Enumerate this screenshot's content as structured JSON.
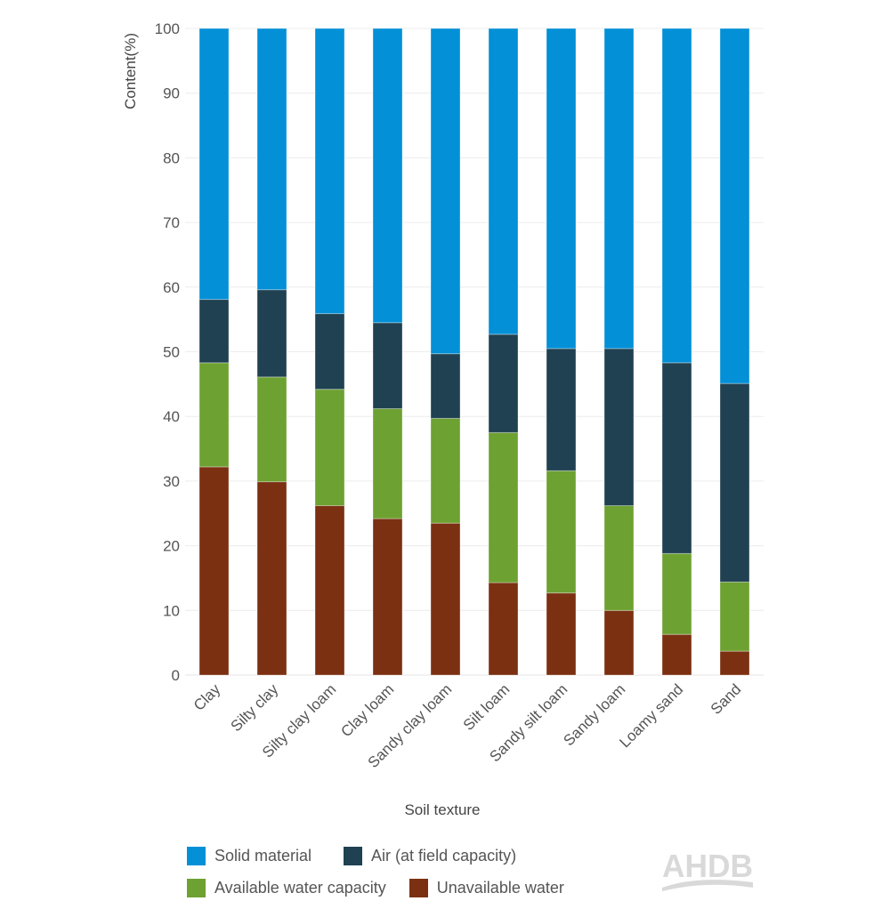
{
  "chart_data": {
    "type": "bar",
    "stacked": true,
    "title": "",
    "xlabel": "Soil texture",
    "ylabel": "Content(%)",
    "ylim": [
      0,
      100
    ],
    "yticks": [
      0,
      10,
      20,
      30,
      40,
      50,
      60,
      70,
      80,
      90,
      100
    ],
    "grid": true,
    "legend_position": "bottom",
    "categories": [
      "Clay",
      "Silty clay",
      "Silty clay loam",
      "Clay loam",
      "Sandy clay loam",
      "Silt loam",
      "Sandy silt loam",
      "Sandy loam",
      "Loamy sand",
      "Sand"
    ],
    "series": [
      {
        "name": "Unavailable water",
        "color": "#7b3011",
        "values": [
          32.2,
          29.9,
          26.2,
          24.2,
          23.5,
          14.3,
          12.7,
          10.0,
          6.3,
          3.7
        ]
      },
      {
        "name": "Available water capacity",
        "color": "#6da131",
        "values": [
          16.1,
          16.2,
          18.0,
          17.0,
          16.2,
          23.2,
          18.9,
          16.2,
          12.5,
          10.7
        ]
      },
      {
        "name": "Air (at field capacity)",
        "color": "#1f4151",
        "values": [
          9.8,
          13.5,
          11.7,
          13.3,
          10.0,
          15.2,
          18.9,
          24.3,
          29.5,
          30.7
        ]
      },
      {
        "name": "Solid material",
        "color": "#0390d7",
        "values": [
          41.9,
          40.4,
          44.1,
          45.5,
          50.3,
          47.3,
          49.5,
          49.5,
          51.7,
          54.9
        ]
      }
    ]
  },
  "legend": {
    "rows": [
      [
        {
          "label": "Solid material",
          "color": "#0390d7"
        },
        {
          "label": "Air (at field capacity)",
          "color": "#1f4151"
        }
      ],
      [
        {
          "label": "Available water capacity",
          "color": "#6da131"
        },
        {
          "label": "Unavailable water",
          "color": "#7b3011"
        }
      ]
    ]
  },
  "logo": {
    "text": "AHDB",
    "color": "#d9d9d9"
  }
}
